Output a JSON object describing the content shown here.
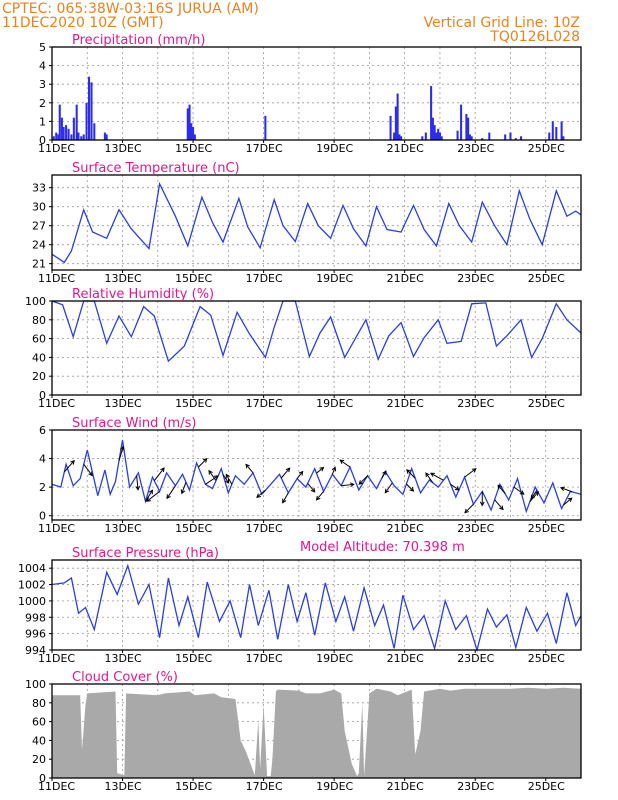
{
  "header": {
    "line1": "CPTEC:   065:38W-03:16S   JURUA (AM)",
    "line2": "11DEC2020 10Z (GMT)",
    "grid_note": "Vertical Grid Line: 10Z",
    "code": "TQ0126L028"
  },
  "x_ticks": [
    "11DEC",
    "13DEC",
    "15DEC",
    "17DEC",
    "19DEC",
    "21DEC",
    "23DEC",
    "25DEC"
  ],
  "model_altitude": "Model Altitude: 70.398 m",
  "colors": {
    "header": "#e8821e",
    "title": "#e0178f",
    "line": "#2b3fe0",
    "bar": "#2b2bf0",
    "cloud": "#a9a9a9"
  },
  "chart_data": [
    {
      "type": "bar",
      "title": "Precipitation (mm/h)",
      "ylim": [
        0,
        5
      ],
      "yticks": [
        "0",
        "1",
        "2",
        "3",
        "4",
        "5"
      ],
      "xrange_days": [
        0,
        15
      ],
      "x": [
        0.05,
        0.12,
        0.18,
        0.22,
        0.28,
        0.33,
        0.4,
        0.47,
        0.55,
        0.62,
        0.7,
        0.75,
        0.83,
        0.9,
        0.98,
        1.05,
        1.12,
        1.2,
        1.5,
        1.55,
        3.85,
        3.9,
        3.95,
        4.0,
        4.05,
        6.05,
        9.6,
        9.7,
        9.75,
        9.8,
        9.85,
        9.9,
        10.5,
        10.6,
        10.75,
        10.8,
        10.85,
        10.9,
        10.95,
        11.0,
        11.05,
        11.5,
        11.6,
        11.75,
        11.8,
        11.85,
        11.9,
        12.2,
        12.4,
        12.85,
        13.0,
        13.15,
        13.3,
        14.1,
        14.2,
        14.3,
        14.45,
        14.5
      ],
      "values": [
        0.2,
        0.4,
        0.3,
        1.9,
        1.2,
        0.7,
        0.8,
        0.6,
        0.3,
        1.2,
        1.9,
        0.4,
        0.2,
        0.3,
        2.0,
        3.4,
        3.1,
        0.9,
        0.4,
        0.3,
        1.7,
        1.9,
        0.9,
        0.7,
        0.3,
        1.3,
        1.3,
        0.4,
        1.8,
        2.5,
        0.3,
        0.2,
        0.2,
        0.4,
        2.9,
        1.2,
        0.8,
        0.4,
        0.6,
        0.4,
        0.2,
        0.5,
        1.9,
        1.4,
        1.2,
        0.3,
        0.2,
        0.1,
        0.4,
        0.3,
        0.4,
        0.1,
        0.2,
        0.4,
        1.0,
        0.7,
        1.0,
        0.2
      ]
    },
    {
      "type": "line",
      "title": "Surface Temperature (nC)",
      "ylim": [
        20,
        35
      ],
      "yticks": [
        "21",
        "24",
        "27",
        "30",
        "33"
      ],
      "xrange_days": [
        0,
        15
      ],
      "x": [
        0,
        0.35,
        0.55,
        0.9,
        1.15,
        1.55,
        1.9,
        2.25,
        2.75,
        3.05,
        3.5,
        3.85,
        4.25,
        4.55,
        4.85,
        5.3,
        5.55,
        5.9,
        6.3,
        6.55,
        6.9,
        7.25,
        7.55,
        7.9,
        8.25,
        8.55,
        8.9,
        9.2,
        9.5,
        9.9,
        10.25,
        10.55,
        10.9,
        11.25,
        11.55,
        11.9,
        12.2,
        12.55,
        12.9,
        13.25,
        13.55,
        13.9,
        14.3,
        14.6,
        14.85,
        15
      ],
      "y": [
        22.5,
        21.2,
        23,
        29.5,
        26,
        25,
        29.5,
        26.5,
        23.4,
        33.6,
        28.5,
        23.8,
        31.5,
        27.5,
        24.4,
        31.3,
        26.8,
        23.5,
        31.1,
        27,
        24.5,
        30.5,
        27,
        25,
        30.2,
        26.5,
        23.8,
        30,
        26.4,
        26,
        30.2,
        26.4,
        23.8,
        30.5,
        27,
        24.4,
        30.7,
        27,
        24,
        32.5,
        28,
        24,
        32.5,
        28.5,
        29.3,
        28.7
      ]
    },
    {
      "type": "line",
      "title": "Relative Humidity (%)",
      "ylim": [
        0,
        100
      ],
      "yticks": [
        "0",
        "20",
        "40",
        "60",
        "80",
        "100"
      ],
      "xrange_days": [
        0,
        15
      ],
      "x": [
        0,
        0.3,
        0.6,
        0.9,
        1.2,
        1.55,
        1.9,
        2.25,
        2.6,
        2.9,
        3.3,
        3.75,
        4.2,
        4.5,
        4.85,
        5.25,
        5.6,
        6.05,
        6.3,
        6.55,
        6.9,
        7.3,
        7.6,
        7.9,
        8.3,
        8.6,
        8.9,
        9.25,
        9.55,
        9.9,
        10.25,
        10.55,
        10.95,
        11.2,
        11.6,
        11.9,
        12.3,
        12.6,
        12.9,
        13.3,
        13.6,
        13.9,
        14.3,
        14.6,
        15
      ],
      "y": [
        100,
        96,
        62,
        100,
        100,
        55,
        84,
        62,
        94,
        84,
        36,
        52,
        94,
        85,
        42,
        88,
        65,
        40,
        72,
        100,
        100,
        41,
        66,
        83,
        40,
        60,
        80,
        38,
        63,
        77,
        41,
        61,
        80,
        55,
        57,
        97,
        98,
        52,
        63,
        80,
        40,
        60,
        97,
        80,
        66
      ]
    },
    {
      "type": "line",
      "title": "Surface Wind (m/s)",
      "ylim": [
        -0.3,
        6
      ],
      "yticks": [
        "0",
        "2",
        "4",
        "6"
      ],
      "xrange_days": [
        0,
        15
      ],
      "x": [
        0,
        0.25,
        0.4,
        0.6,
        0.8,
        1.0,
        1.3,
        1.5,
        1.65,
        1.8,
        2.0,
        2.2,
        2.45,
        2.65,
        2.85,
        3.05,
        3.25,
        3.5,
        3.7,
        3.9,
        4.1,
        4.35,
        4.55,
        4.8,
        5.0,
        5.2,
        5.45,
        5.7,
        5.95,
        6.2,
        6.45,
        6.7,
        6.95,
        7.2,
        7.45,
        7.7,
        7.95,
        8.2,
        8.45,
        8.7,
        8.95,
        9.2,
        9.45,
        9.7,
        9.95,
        10.2,
        10.45,
        10.7,
        10.95,
        11.2,
        11.45,
        11.7,
        11.95,
        12.2,
        12.45,
        12.7,
        12.95,
        13.2,
        13.45,
        13.7,
        13.95,
        14.2,
        14.45,
        14.7,
        15
      ],
      "y": [
        2.2,
        2.0,
        3.6,
        2.1,
        2.6,
        4.6,
        1.4,
        3.2,
        1.5,
        2.4,
        5.3,
        2.0,
        3.0,
        1.0,
        2.7,
        1.7,
        3.0,
        2.1,
        2.9,
        1.8,
        3.7,
        2.2,
        1.9,
        3.3,
        1.6,
        2.8,
        2.2,
        3.0,
        1.5,
        2.2,
        2.9,
        1.6,
        2.6,
        2.0,
        3.3,
        1.7,
        2.9,
        2.1,
        3.4,
        1.8,
        2.8,
        1.9,
        3.1,
        2.1,
        1.5,
        3.3,
        1.6,
        2.5,
        2.0,
        2.8,
        1.3,
        2.7,
        0.8,
        1.7,
        0.4,
        2.2,
        1.1,
        2.6,
        0.3,
        2.0,
        0.9,
        2.3,
        0.5,
        1.7,
        1.5
      ],
      "vectors": {
        "x": [
          0.35,
          0.9,
          1.9,
          2.4,
          2.65,
          2.9,
          3.05,
          3.5,
          3.8,
          4.15,
          4.35,
          4.65,
          4.85,
          5.1,
          5.7,
          6.05,
          6.5,
          6.7,
          6.95,
          7.25,
          7.5,
          7.7,
          7.95,
          8.2,
          8.45,
          8.95,
          9.35,
          9.65,
          10.05,
          10.3,
          10.8,
          11.1,
          11.3,
          11.7,
          11.95,
          12.2,
          12.55,
          12.85,
          13.1,
          13.55,
          13.75,
          14.5,
          14.75
        ],
        "u": [
          0.7,
          0.6,
          0.3,
          0.1,
          0.5,
          0.7,
          -0.9,
          -0.6,
          -0.3,
          0.6,
          0.9,
          -0.5,
          0.4,
          -0.4,
          -0.5,
          -0.6,
          0.6,
          -0.4,
          0.4,
          0.5,
          0.5,
          -0.5,
          0.2,
          0.9,
          -0.7,
          -0.6,
          0.3,
          -0.5,
          0.5,
          -0.6,
          -0.5,
          -0.9,
          0.6,
          0.8,
          -0.6,
          0.0,
          0.6,
          -0.5,
          0.7,
          0.6,
          -0.4,
          0.6,
          -0.8
        ],
        "v": [
          0.8,
          -0.8,
          1.0,
          -1.0,
          0.8,
          0.9,
          -0.7,
          -0.9,
          -0.8,
          0.6,
          0.6,
          0.7,
          -0.6,
          0.7,
          0.6,
          -0.5,
          0.7,
          -0.7,
          0.5,
          -0.6,
          0.4,
          -0.6,
          0.5,
          0.1,
          0.5,
          -0.6,
          0.5,
          -0.7,
          -0.5,
          0.6,
          0.7,
          0.5,
          -0.4,
          0.6,
          -0.6,
          -1.0,
          -0.7,
          0.6,
          -0.5,
          0.7,
          -0.6,
          0.5,
          0.3
        ]
      }
    },
    {
      "type": "line",
      "title": "Surface Pressure (hPa)",
      "ylim": [
        994,
        1005
      ],
      "yticks": [
        "994",
        "996",
        "998",
        "1000",
        "1002",
        "1004"
      ],
      "xrange_days": [
        0,
        15
      ],
      "x": [
        0,
        0.35,
        0.55,
        0.75,
        0.95,
        1.2,
        1.55,
        1.85,
        2.15,
        2.45,
        2.75,
        3.05,
        3.3,
        3.6,
        3.85,
        4.15,
        4.4,
        4.75,
        5.05,
        5.35,
        5.6,
        5.85,
        6.15,
        6.4,
        6.7,
        6.95,
        7.2,
        7.45,
        7.75,
        8.05,
        8.3,
        8.55,
        8.85,
        9.15,
        9.4,
        9.7,
        9.95,
        10.25,
        10.55,
        10.85,
        11.15,
        11.45,
        11.75,
        12.05,
        12.35,
        12.6,
        12.9,
        13.15,
        13.45,
        13.75,
        14.05,
        14.3,
        14.6,
        14.85,
        15
      ],
      "y": [
        1002,
        1002.2,
        1002.8,
        998.5,
        999.2,
        996.5,
        1003.5,
        1000.8,
        1004.3,
        999.6,
        1002,
        995.5,
        1002.8,
        997,
        1000.5,
        995.5,
        1002.3,
        997.5,
        1000,
        995.5,
        1002,
        997,
        1001.3,
        995.3,
        1002,
        997.5,
        1001,
        995.8,
        1002.2,
        997.5,
        1000.5,
        996.3,
        1001.6,
        997,
        999.5,
        994.2,
        1000.7,
        996.5,
        998.2,
        994.2,
        1000,
        996.5,
        998.2,
        994,
        999,
        996.8,
        998.3,
        994.3,
        999.2,
        996.3,
        998.5,
        994.8,
        1001,
        997,
        998.2
      ]
    },
    {
      "type": "area",
      "title": "Cloud Cover (%)",
      "ylim": [
        0,
        100
      ],
      "yticks": [
        "0",
        "20",
        "40",
        "60",
        "80",
        "100"
      ],
      "xrange_days": [
        0,
        15
      ],
      "x": [
        0,
        0.8,
        0.85,
        0.95,
        1.0,
        1.8,
        1.85,
        2.05,
        2.1,
        3.0,
        3.2,
        3.9,
        4.05,
        4.6,
        4.8,
        5.2,
        5.35,
        5.5,
        5.6,
        5.7,
        5.75,
        5.85,
        5.9,
        6.0,
        6.1,
        6.2,
        6.25,
        6.35,
        6.4,
        7.0,
        7.2,
        7.6,
        7.8,
        8.0,
        8.2,
        8.3,
        8.5,
        8.65,
        8.7,
        8.8,
        8.85,
        9.0,
        9.2,
        9.6,
        9.8,
        10.2,
        10.3,
        10.45,
        10.55,
        11.0,
        11.3,
        11.7,
        12.2,
        13.0,
        13.5,
        14.0,
        14.5,
        15
      ],
      "y": [
        88,
        88,
        30,
        78,
        90,
        92,
        5,
        3,
        90,
        88,
        90,
        92,
        88,
        90,
        86,
        84,
        40,
        28,
        18,
        8,
        3,
        62,
        10,
        78,
        2,
        2,
        20,
        92,
        94,
        93,
        90,
        90,
        92,
        94,
        90,
        50,
        15,
        2,
        5,
        80,
        2,
        90,
        95,
        92,
        88,
        94,
        25,
        50,
        92,
        95,
        93,
        95,
        95,
        95,
        96,
        95,
        96,
        95
      ]
    }
  ]
}
